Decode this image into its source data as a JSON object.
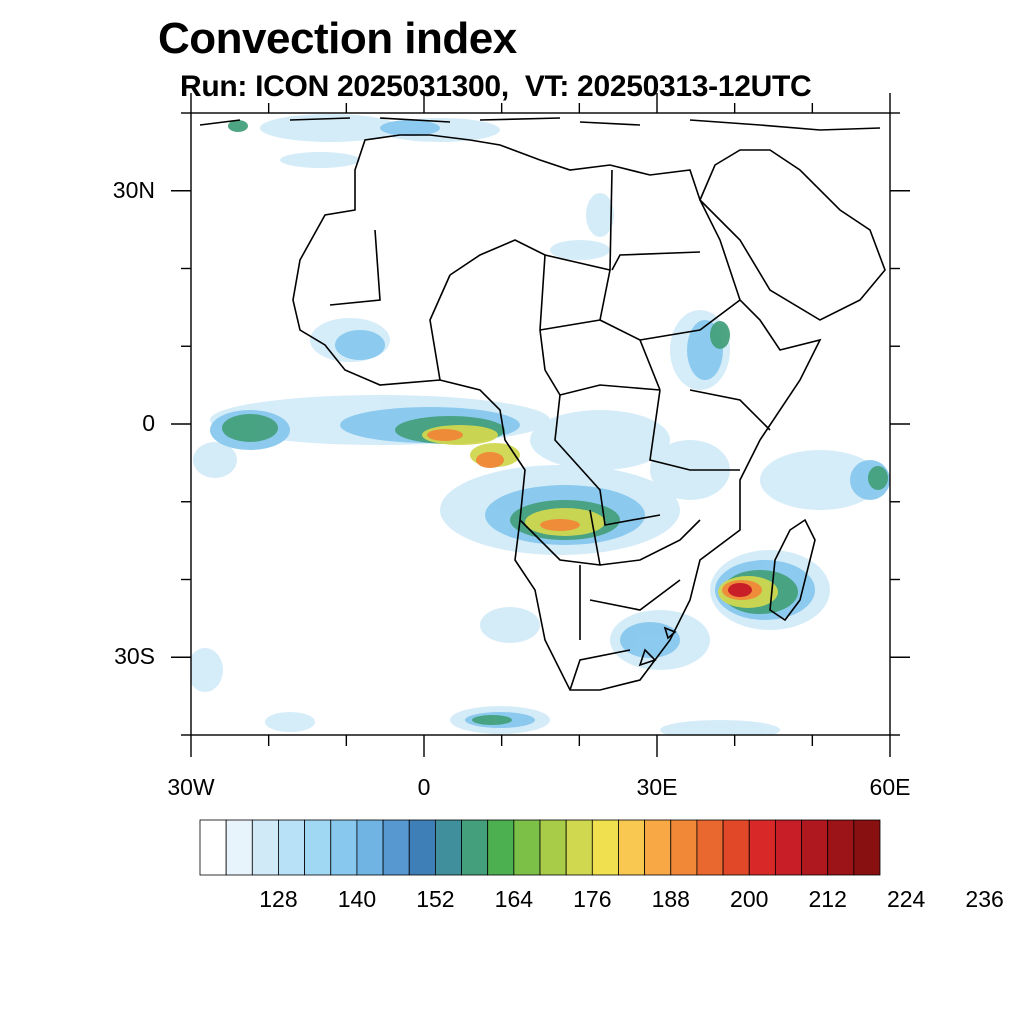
{
  "title": "Convection index",
  "subtitle": "Run: ICON 2025031300,  VT: 20250313-12UTC",
  "map": {
    "lon_range": [
      -30,
      60
    ],
    "lat_range": [
      -40,
      40
    ],
    "lat_tick_labels": [
      "30N",
      "0",
      "30S"
    ],
    "lon_tick_labels": [
      "30W",
      "0",
      "30E",
      "60E"
    ],
    "lat_major_ticks": [
      30,
      0,
      -30
    ],
    "lon_major_ticks": [
      -30,
      0,
      30,
      60
    ],
    "lat_minor_ticks": [
      40,
      20,
      10,
      -10,
      -20,
      -40
    ],
    "lon_minor_ticks": [
      -20,
      -10,
      10,
      20,
      40,
      50
    ],
    "background": "#ffffff",
    "border_color": "#000000"
  },
  "colorbar": {
    "labels": [
      "128",
      "140",
      "152",
      "164",
      "176",
      "188",
      "200",
      "212",
      "224",
      "236"
    ],
    "colors": [
      "#ffffff",
      "#e8f4fc",
      "#d0eaf8",
      "#b8e0f6",
      "#a0d8f4",
      "#88c8ee",
      "#70b4e4",
      "#5898d0",
      "#3f7fb8",
      "#3f8f9c",
      "#44a07c",
      "#4cb050",
      "#7cc048",
      "#a8cc48",
      "#d0d850",
      "#f0e050",
      "#f8c850",
      "#f8a844",
      "#f08838",
      "#e86830",
      "#e04828",
      "#d82828",
      "#c81e28",
      "#b01820",
      "#9c1418",
      "#881010"
    ]
  }
}
